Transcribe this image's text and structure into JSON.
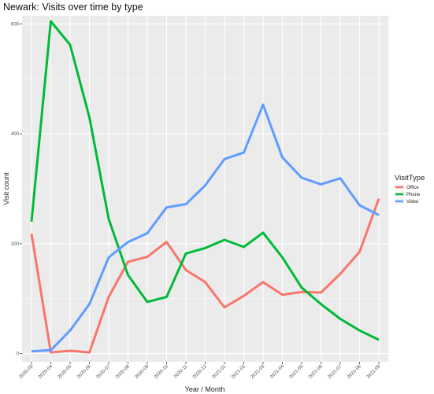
{
  "chart_data": {
    "type": "line",
    "title": "Newark: Visits over time by type",
    "xlabel": "Year / Month",
    "ylabel": "Visit count",
    "categories": [
      "2020-03",
      "2020-04",
      "2020-05",
      "2020-06",
      "2020-07",
      "2020-08",
      "2020-09",
      "2020-10",
      "2020-11",
      "2020-12",
      "2021-01",
      "2021-02",
      "2021-03",
      "2021-04",
      "2021-05",
      "2021-06",
      "2021-07",
      "2021-08",
      "2021-09"
    ],
    "yticks": [
      0,
      200,
      400,
      600
    ],
    "ylim": [
      -15,
      615
    ],
    "grid": true,
    "legend": {
      "title": "VisitType",
      "placement": "right"
    },
    "series": [
      {
        "name": "Office",
        "color": "#F8766D",
        "values": [
          218,
          2,
          5,
          2,
          103,
          167,
          176,
          203,
          152,
          130,
          84,
          105,
          130,
          107,
          112,
          111,
          145,
          185,
          282
        ]
      },
      {
        "name": "Phone",
        "color": "#00BA38",
        "values": [
          240,
          605,
          562,
          430,
          245,
          143,
          94,
          103,
          182,
          192,
          207,
          194,
          220,
          175,
          120,
          90,
          63,
          42,
          25
        ]
      },
      {
        "name": "Video",
        "color": "#619CFF",
        "values": [
          4,
          6,
          42,
          90,
          175,
          203,
          219,
          266,
          272,
          306,
          354,
          366,
          453,
          357,
          320,
          308,
          319,
          270,
          252
        ]
      }
    ]
  }
}
